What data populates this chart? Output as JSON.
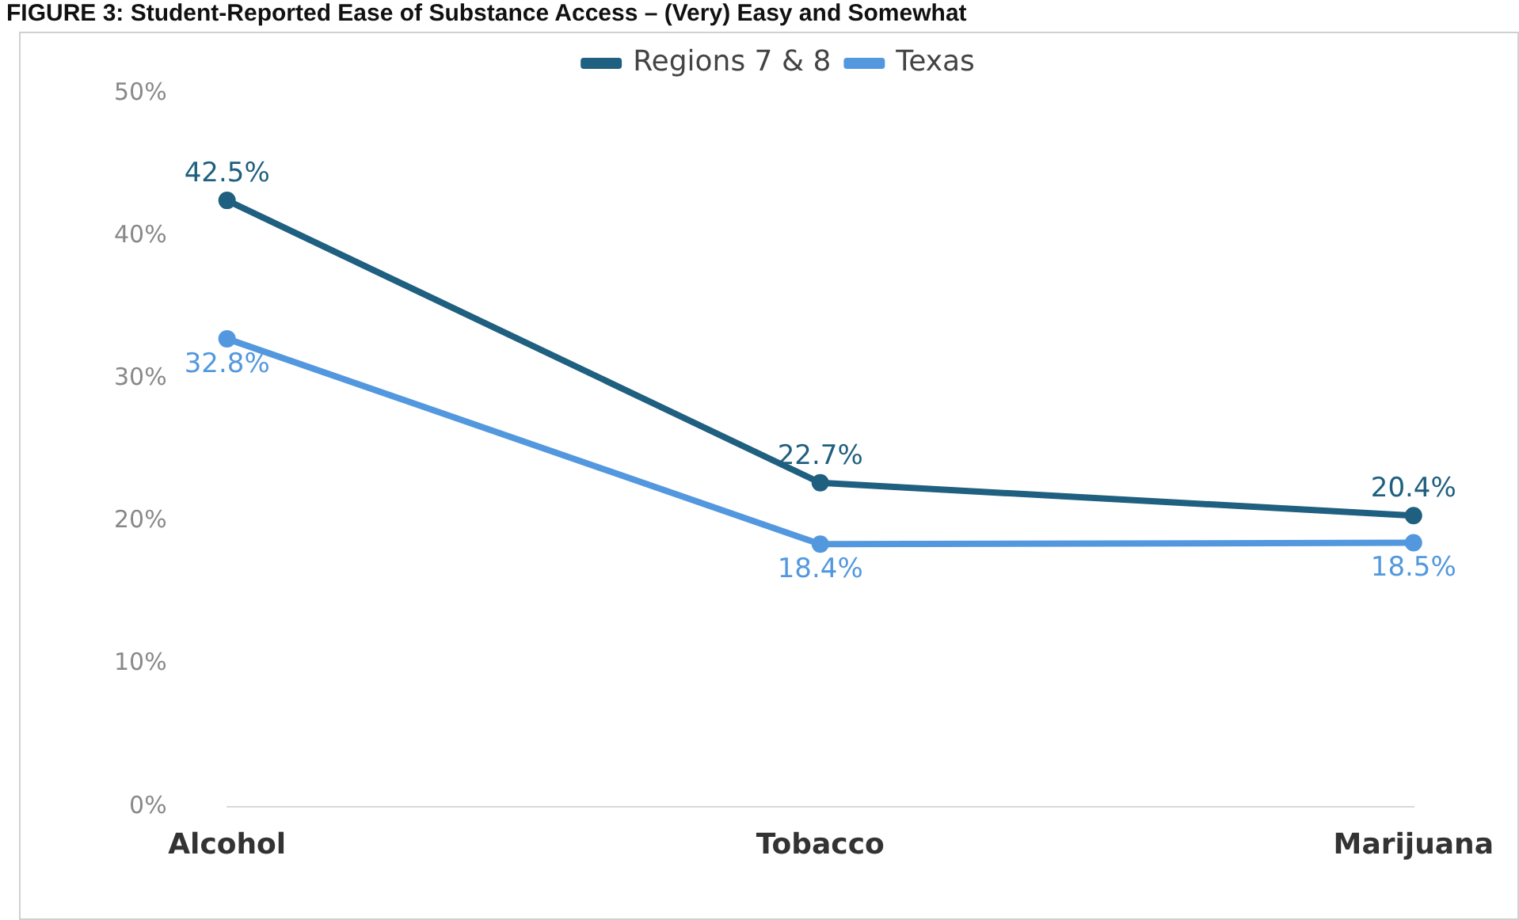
{
  "chart_data": {
    "type": "line",
    "title": "FIGURE 3: Student-Reported Ease of Substance Access – (Very) Easy and Somewhat",
    "categories": [
      "Alcohol",
      "Tobacco",
      "Marijuana"
    ],
    "series": [
      {
        "name": "Regions 7 & 8",
        "color": "#1f5f7f",
        "values": [
          42.5,
          22.7,
          20.4
        ],
        "value_labels": [
          "42.5%",
          "22.7%",
          "20.4%"
        ]
      },
      {
        "name": "Texas",
        "color": "#5398de",
        "values": [
          32.8,
          18.4,
          18.5
        ],
        "value_labels": [
          "32.8%",
          "18.4%",
          "18.5%"
        ]
      }
    ],
    "ylim": [
      0,
      50
    ],
    "yticks": [
      {
        "value": 0,
        "label": "0%"
      },
      {
        "value": 10,
        "label": "10%"
      },
      {
        "value": 20,
        "label": "20%"
      },
      {
        "value": 30,
        "label": "30%"
      },
      {
        "value": 40,
        "label": "40%"
      },
      {
        "value": 50,
        "label": "50%"
      }
    ],
    "grid": false,
    "legend": "top",
    "marker": "circle"
  }
}
